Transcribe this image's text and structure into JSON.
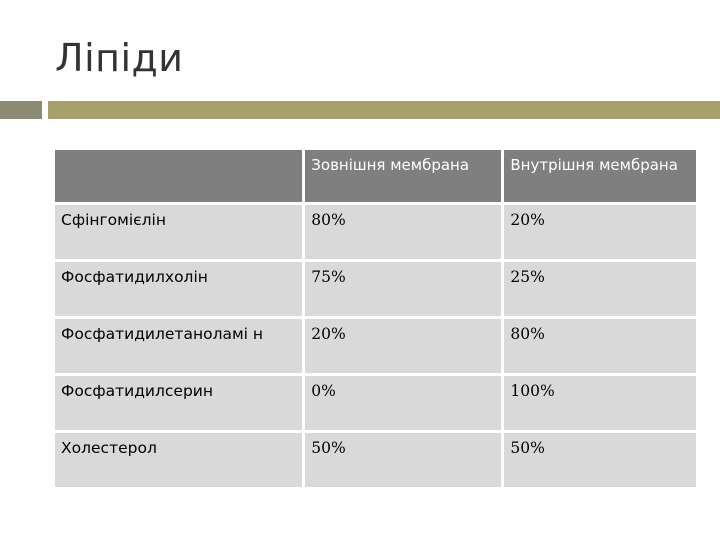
{
  "slide": {
    "title": "Ліпіди"
  },
  "table": {
    "headers": [
      "",
      "Зовнішня мембрана",
      "Внутрішня мембрана"
    ],
    "rows": [
      {
        "lipid": "Сфінгомієлін",
        "outer": "80%",
        "inner": "20%"
      },
      {
        "lipid": "Фосфатидилхолін",
        "outer": "75%",
        "inner": "25%"
      },
      {
        "lipid": "Фосфатидилетаноламі н",
        "outer": "20%",
        "inner": "80%"
      },
      {
        "lipid": "Фосфатидилсерин",
        "outer": "0%",
        "inner": "100%"
      },
      {
        "lipid": "Холестерол",
        "outer": "50%",
        "inner": "50%"
      }
    ]
  },
  "colors": {
    "accent_bar": "#a79f6c",
    "accent_square": "#8c8a72",
    "header_bg": "#7f7f7f",
    "cell_bg": "#d9d9d9"
  }
}
